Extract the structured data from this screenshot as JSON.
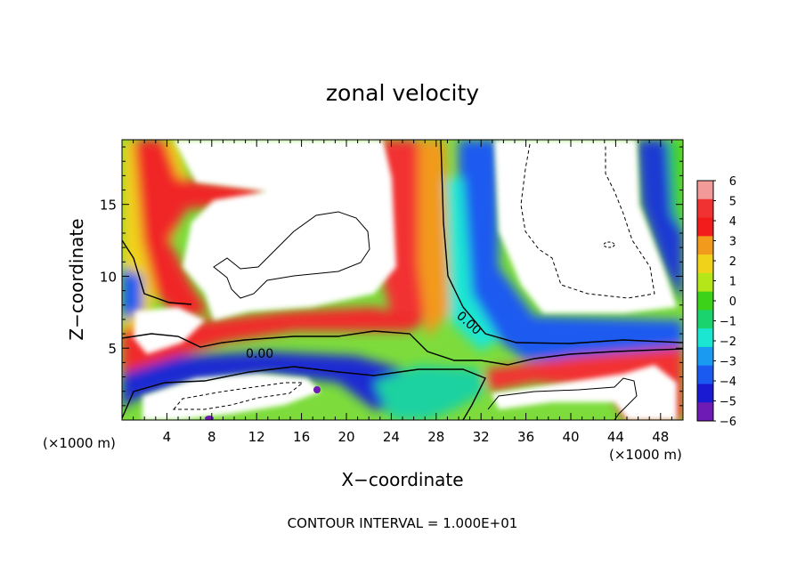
{
  "chart_data": {
    "type": "heatmap",
    "title": "zonal velocity",
    "xlabel": "X−coordinate",
    "ylabel": "Z−coordinate",
    "x_unit_label_left": "(×1000 m)",
    "x_unit_label_right": "(×1000 m)",
    "footer": "CONTOUR INTERVAL = 1.000E+01",
    "xlim": [
      0,
      50
    ],
    "ylim": [
      0,
      19.5
    ],
    "x_ticks": [
      4,
      8,
      12,
      16,
      20,
      24,
      28,
      32,
      36,
      40,
      44,
      48
    ],
    "y_ticks": [
      5,
      10,
      15
    ],
    "colorbar_labels": [
      "6",
      "5",
      "4",
      "3",
      "2",
      "1",
      "0",
      "−1",
      "−2",
      "−3",
      "−4",
      "−5",
      "−6"
    ],
    "colorbar_colors": [
      "#f29a9a",
      "#f03232",
      "#f21c1c",
      "#f29a1c",
      "#f0d21a",
      "#b4e61a",
      "#3cd21a",
      "#1ad26e",
      "#1ae6d2",
      "#1a9af0",
      "#1a5af0",
      "#1a1ad2",
      "#6e1ab4"
    ],
    "contour_labels": [
      {
        "text": "0.00",
        "x": 12.8,
        "z": 4.8
      },
      {
        "text": "0.00",
        "x": 30.4,
        "z": 6.6
      }
    ],
    "grid": false,
    "legend": "colorbar right"
  }
}
